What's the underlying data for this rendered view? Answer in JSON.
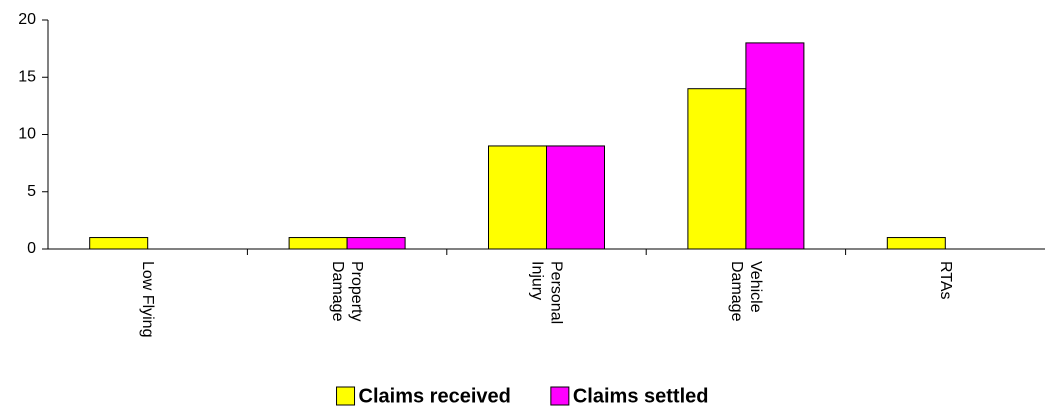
{
  "chart_data": {
    "type": "bar",
    "categories": [
      "Low Flying",
      "Property Damage",
      "Personal Injury",
      "Vehicle Damage",
      "RTAs"
    ],
    "series": [
      {
        "name": "Claims received",
        "color": "#ffff00",
        "values": [
          1,
          1,
          9,
          14,
          1
        ]
      },
      {
        "name": "Claims settled",
        "color": "#ff00ff",
        "values": [
          0,
          1,
          9,
          18,
          0
        ]
      }
    ],
    "ylim": [
      0,
      20
    ],
    "yticks": [
      0,
      5,
      10,
      15,
      20
    ],
    "grid": false,
    "legend": "bottom"
  }
}
